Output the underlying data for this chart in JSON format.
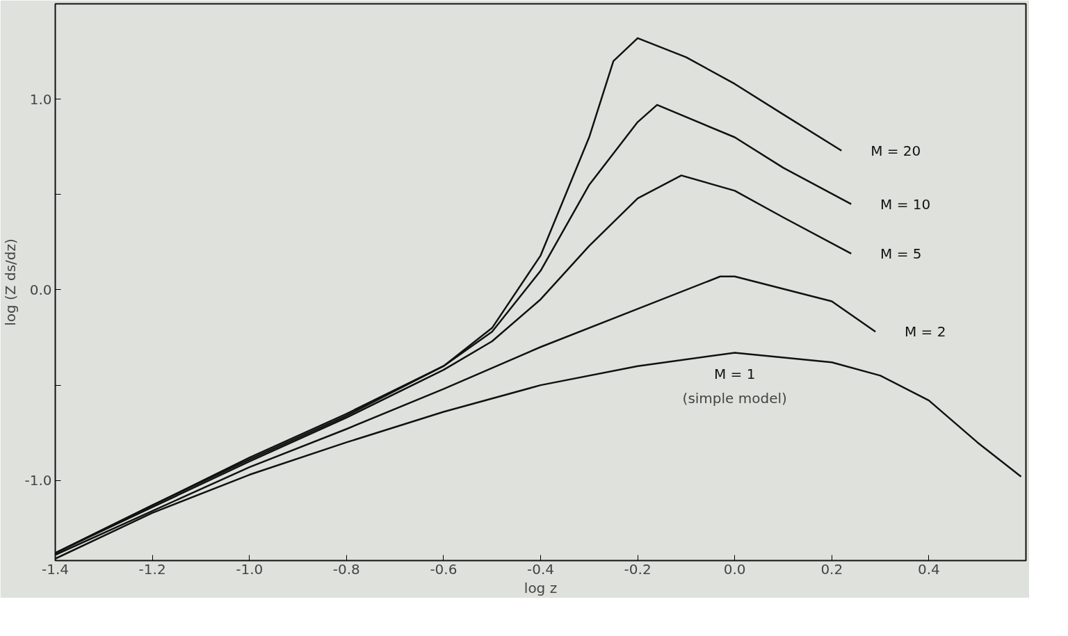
{
  "chart_data": {
    "type": "line",
    "xlabel": "log z",
    "ylabel": "log (Z ds/dz)",
    "xlim": [
      -1.4,
      0.6
    ],
    "ylim": [
      -1.42,
      1.5
    ],
    "xticks": [
      {
        "value": -1.4,
        "label": "-1.4"
      },
      {
        "value": -1.2,
        "label": "-1.2"
      },
      {
        "value": -1.0,
        "label": "-1.0"
      },
      {
        "value": -0.8,
        "label": "-0.8"
      },
      {
        "value": -0.6,
        "label": "-0.6"
      },
      {
        "value": -0.4,
        "label": "-0.4"
      },
      {
        "value": -0.2,
        "label": "-0.2"
      },
      {
        "value": 0.0,
        "label": "0.0"
      },
      {
        "value": 0.2,
        "label": "0.2"
      },
      {
        "value": 0.4,
        "label": "0.4"
      }
    ],
    "yticks": [
      {
        "value": -1.0,
        "label": "-1.0"
      },
      {
        "value": -0.5,
        "label": null
      },
      {
        "value": 0.0,
        "label": "0.0"
      },
      {
        "value": 0.5,
        "label": null
      },
      {
        "value": 1.0,
        "label": "1.0"
      }
    ],
    "grid": false,
    "line_style": "solid",
    "marker": "none",
    "annotations": [
      "(simple model)"
    ],
    "series": [
      {
        "name": "M = 20",
        "color": "#111111",
        "x": [
          -1.4,
          -1.2,
          -1.0,
          -0.8,
          -0.6,
          -0.5,
          -0.4,
          -0.3,
          -0.25,
          -0.2,
          -0.1,
          0.0,
          0.1,
          0.22
        ],
        "values": [
          -1.38,
          -1.13,
          -0.88,
          -0.65,
          -0.4,
          -0.2,
          0.18,
          0.8,
          1.2,
          1.32,
          1.22,
          1.08,
          0.92,
          0.73
        ]
      },
      {
        "name": "M = 10",
        "color": "#111111",
        "x": [
          -1.4,
          -1.2,
          -1.0,
          -0.8,
          -0.6,
          -0.5,
          -0.4,
          -0.3,
          -0.2,
          -0.16,
          0.0,
          0.1,
          0.24
        ],
        "values": [
          -1.38,
          -1.13,
          -0.89,
          -0.66,
          -0.4,
          -0.22,
          0.1,
          0.55,
          0.88,
          0.97,
          0.8,
          0.64,
          0.45
        ]
      },
      {
        "name": "M = 5",
        "color": "#111111",
        "x": [
          -1.4,
          -1.2,
          -1.0,
          -0.8,
          -0.6,
          -0.5,
          -0.4,
          -0.3,
          -0.2,
          -0.11,
          0.0,
          0.1,
          0.24
        ],
        "values": [
          -1.38,
          -1.14,
          -0.9,
          -0.67,
          -0.42,
          -0.27,
          -0.05,
          0.23,
          0.48,
          0.6,
          0.52,
          0.38,
          0.19
        ]
      },
      {
        "name": "M = 2",
        "color": "#111111",
        "x": [
          -1.4,
          -1.2,
          -1.0,
          -0.8,
          -0.6,
          -0.4,
          -0.2,
          -0.03,
          0.0,
          0.2,
          0.29
        ],
        "values": [
          -1.39,
          -1.16,
          -0.93,
          -0.73,
          -0.52,
          -0.3,
          -0.1,
          0.07,
          0.07,
          -0.06,
          -0.22
        ]
      },
      {
        "name": "M = 1",
        "color": "#111111",
        "x": [
          -1.4,
          -1.2,
          -1.0,
          -0.8,
          -0.6,
          -0.4,
          -0.2,
          0.0,
          0.2,
          0.3,
          0.4,
          0.5,
          0.59
        ],
        "values": [
          -1.41,
          -1.17,
          -0.97,
          -0.8,
          -0.64,
          -0.5,
          -0.4,
          -0.33,
          -0.38,
          -0.45,
          -0.58,
          -0.8,
          -0.98
        ]
      }
    ]
  }
}
